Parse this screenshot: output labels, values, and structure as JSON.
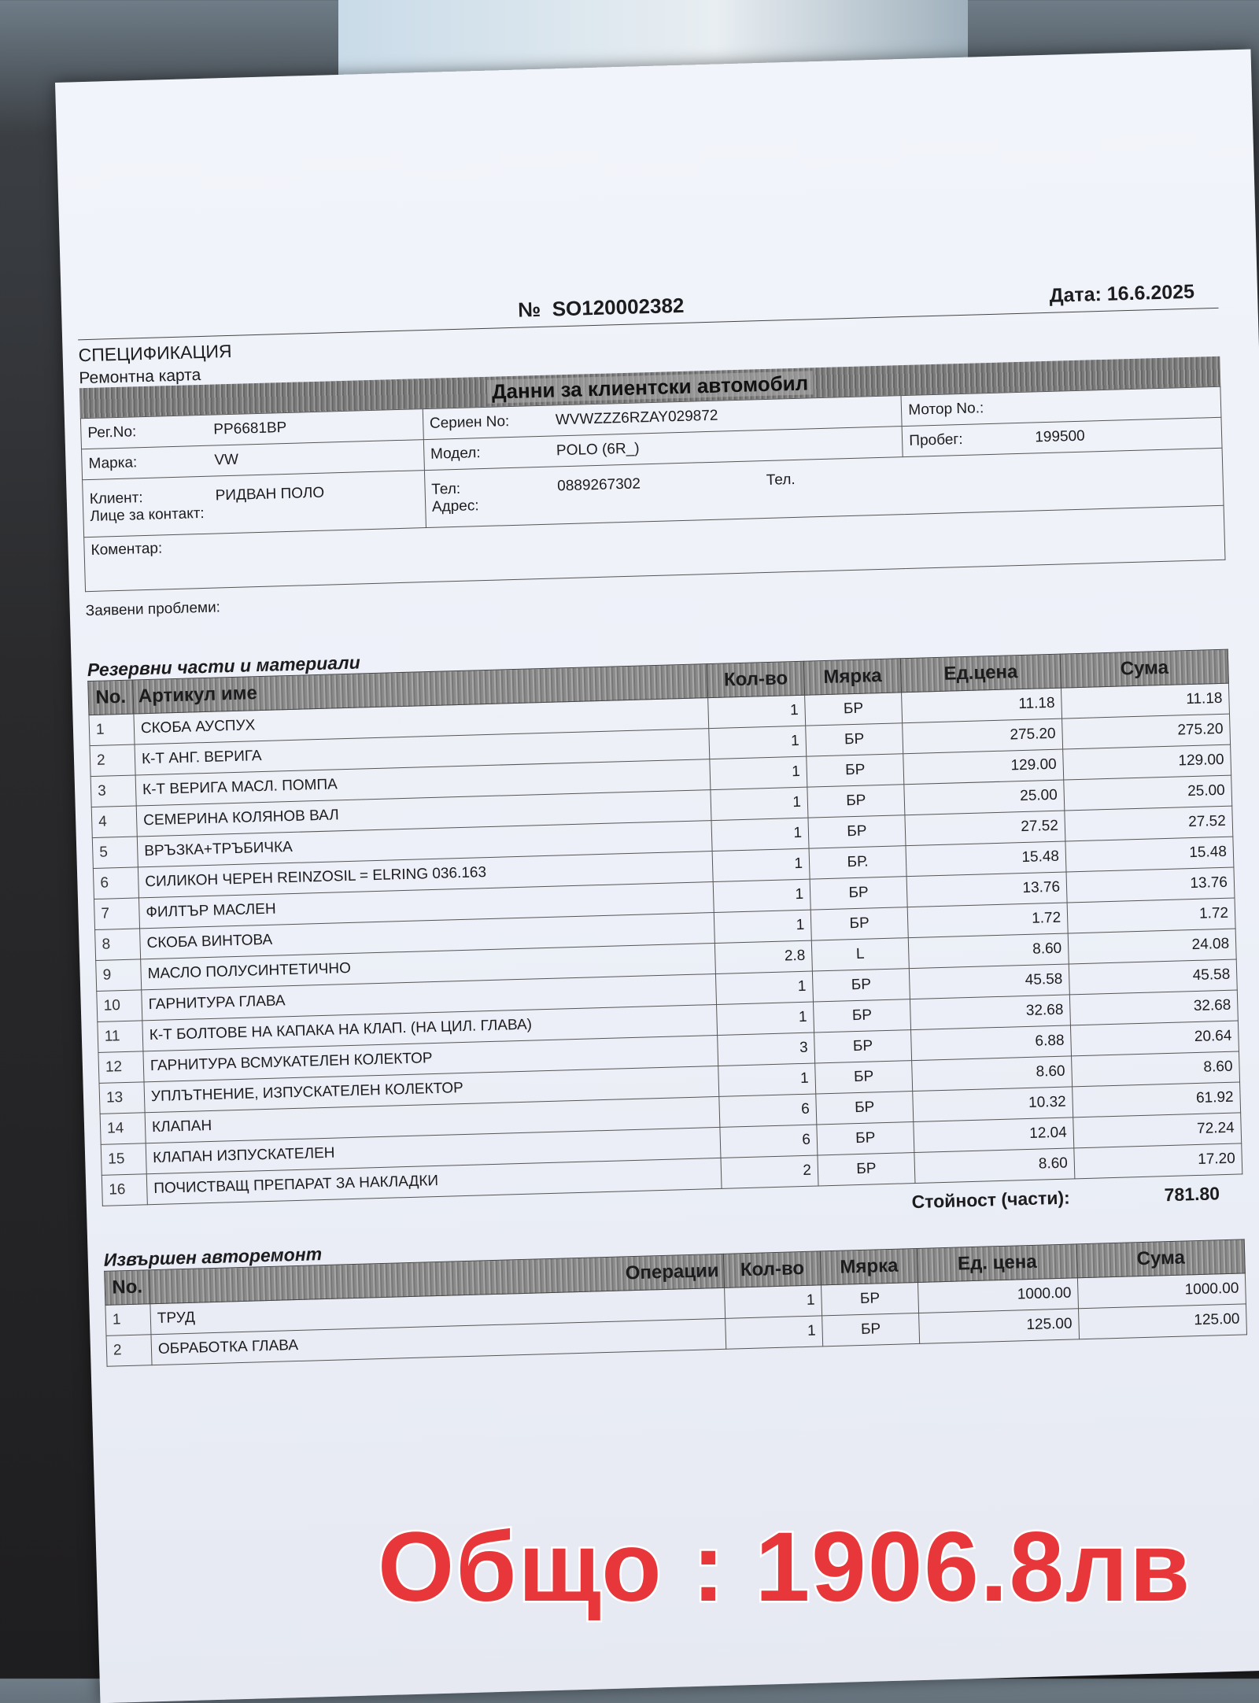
{
  "document": {
    "number_label": "№",
    "number": "SO120002382",
    "date_label": "Дата:",
    "date": "16.6.2025",
    "title": "СПЕЦИФИКАЦИЯ",
    "subtitle": "Ремонтна карта",
    "vehicle_section": "Данни за клиентски автомобил",
    "vehicle": {
      "reg_label": "Рег.No:",
      "reg": "PP6681BP",
      "serial_label": "Сериен No:",
      "serial": "WVWZZZ6RZAY029872",
      "motor_label": "Мотор No.:",
      "motor": "",
      "make_label": "Марка:",
      "make": "VW",
      "model_label": "Модел:",
      "model": "POLO (6R_)",
      "mileage_label": "Пробег:",
      "mileage": "199500",
      "client_label": "Клиент:",
      "client": "РИДВАН ПОЛО",
      "contact_label": "Лице за контакт:",
      "phone_label": "Тел:",
      "phone": "0889267302",
      "phone2_label": "Тел.",
      "address_label": "Адрес:",
      "comment_label": "Коментар:",
      "problems_label": "Заявени проблеми:"
    },
    "parts": {
      "title": "Резервни части и материали",
      "columns": [
        "No.",
        "Артикул име",
        "Кол-во",
        "Мярка",
        "Ед.цена",
        "Сума"
      ],
      "rows": [
        [
          "1",
          "СКОБА  АУСПУХ",
          "1",
          "БР",
          "11.18",
          "11.18"
        ],
        [
          "2",
          "К-Т АНГ. ВЕРИГА",
          "1",
          "БР",
          "275.20",
          "275.20"
        ],
        [
          "3",
          "К-Т ВЕРИГА МАСЛ. ПОМПА",
          "1",
          "БР",
          "129.00",
          "129.00"
        ],
        [
          "4",
          "СЕМЕРИНА КОЛЯНОВ ВАЛ",
          "1",
          "БР",
          "25.00",
          "25.00"
        ],
        [
          "5",
          "ВРЪЗКА+ТРЪБИЧКА",
          "1",
          "БР",
          "27.52",
          "27.52"
        ],
        [
          "6",
          "СИЛИКОН ЧЕРЕН REINZOSIL = ELRING 036.163",
          "1",
          "БР.",
          "15.48",
          "15.48"
        ],
        [
          "7",
          "ФИЛТЪР МАСЛЕН",
          "1",
          "БР",
          "13.76",
          "13.76"
        ],
        [
          "8",
          "СКОБА ВИНТОВА",
          "1",
          "БР",
          "1.72",
          "1.72"
        ],
        [
          "9",
          "МАСЛО ПОЛУСИНТЕТИЧНО",
          "2.8",
          "L",
          "8.60",
          "24.08"
        ],
        [
          "10",
          "ГАРНИТУРА ГЛАВА",
          "1",
          "БР",
          "45.58",
          "45.58"
        ],
        [
          "11",
          "К-Т БОЛТОВЕ НА КАПАКА НА КЛАП. (НА ЦИЛ. ГЛАВА)",
          "1",
          "БР",
          "32.68",
          "32.68"
        ],
        [
          "12",
          "ГАРНИТУРА ВСМУКАТЕЛЕН КОЛЕКТОР",
          "3",
          "БР",
          "6.88",
          "20.64"
        ],
        [
          "13",
          "УПЛЪТНЕНИЕ, ИЗПУСКАТЕЛЕН КОЛЕКТОР",
          "1",
          "БР",
          "8.60",
          "8.60"
        ],
        [
          "14",
          "КЛАПАН",
          "6",
          "БР",
          "10.32",
          "61.92"
        ],
        [
          "15",
          "КЛАПАН ИЗПУСКАТЕЛЕН",
          "6",
          "БР",
          "12.04",
          "72.24"
        ],
        [
          "16",
          "ПОЧИСТВАЩ ПРЕПАРАТ ЗА НАКЛАДКИ",
          "2",
          "БР",
          "8.60",
          "17.20"
        ]
      ],
      "total_label": "Стойност (части):",
      "total": "781.80"
    },
    "labor": {
      "title": "Извършен авторемонт",
      "columns": [
        "No.",
        "Операции",
        "Кол-во",
        "Мярка",
        "Ед. цена",
        "Сума"
      ],
      "rows": [
        [
          "1",
          "ТРУД",
          "1",
          "БР",
          "1000.00",
          "1000.00"
        ],
        [
          "2",
          "ОБРАБОТКА ГЛАВА",
          "1",
          "БР",
          "125.00",
          "125.00"
        ]
      ]
    }
  },
  "overlay": {
    "total_text": "Общо : 1906.8лв",
    "color": "#e8373a"
  }
}
